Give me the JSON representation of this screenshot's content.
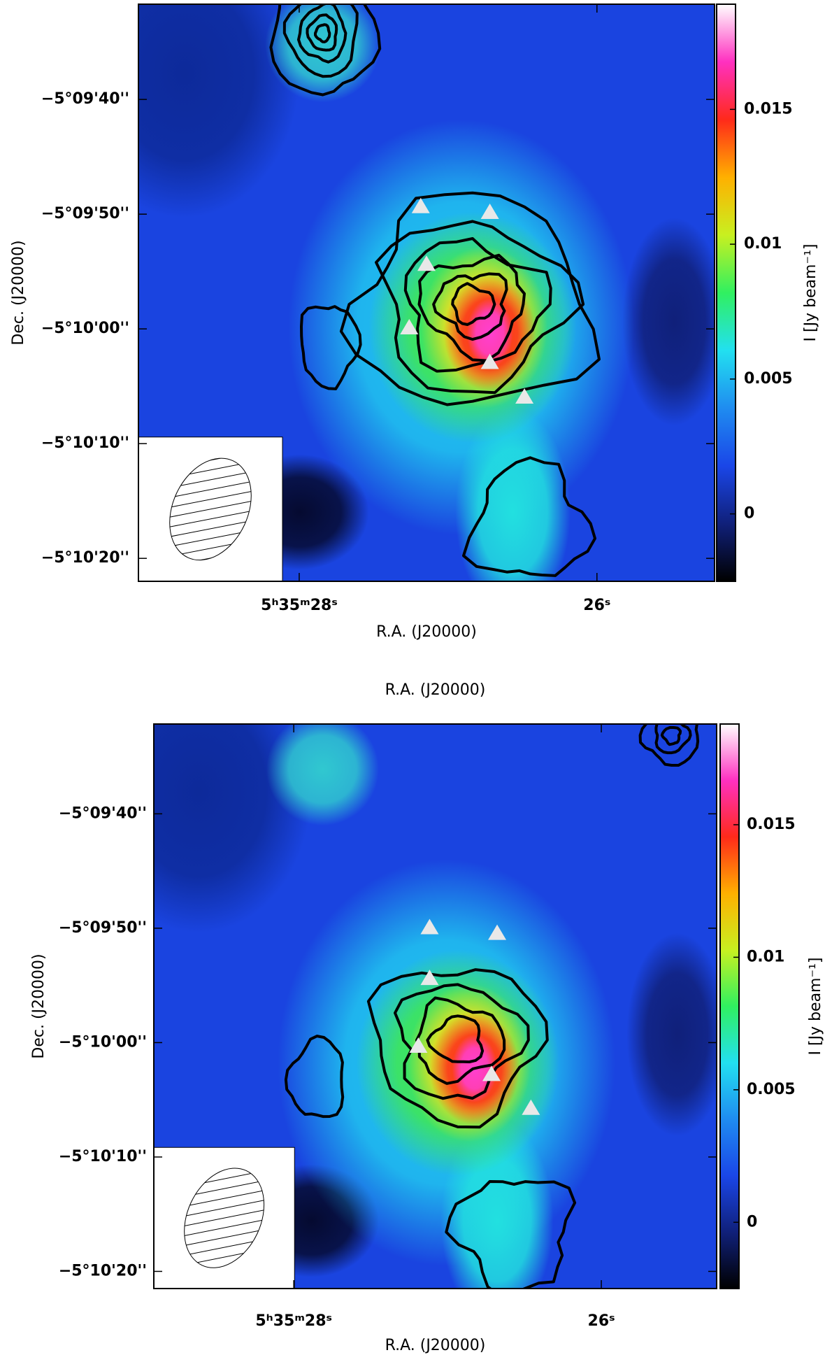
{
  "chart_data": [
    {
      "type": "image",
      "xlabel": "R.A. (J20000)",
      "ylabel": "Dec. (J20000)",
      "xlim": [
        29.08,
        25.21
      ],
      "ylim": [
        -18622,
        -18571.7
      ],
      "xticks": [
        {
          "value": 28,
          "label": "5ʰ35ᵐ28ˢ"
        },
        {
          "value": 26,
          "label": "26ˢ"
        }
      ],
      "yticks": [
        {
          "value": -18580,
          "label": "−5°09'40''"
        },
        {
          "value": -18590,
          "label": "−5°09'50''"
        },
        {
          "value": -18600,
          "label": "−5°10'00''"
        },
        {
          "value": -18610,
          "label": "−5°10'10''"
        },
        {
          "value": -18620,
          "label": "−5°10'20''"
        }
      ],
      "colorbar": {
        "label": "I [Jy beam⁻¹]",
        "lim": [
          -0.0025,
          0.0189
        ],
        "ticks": [
          0,
          0.005,
          0.01,
          0.015
        ],
        "colormap": [
          "#000000",
          "#10207a",
          "#1a46e8",
          "#1f8cf0",
          "#22e0f0",
          "#30f060",
          "#c8f020",
          "#ffb000",
          "#ff2a1a",
          "#ff30c0",
          "#ffffff"
        ]
      }
    },
    {
      "type": "image",
      "top_label": "R.A. (J20000)",
      "xlabel": "R.A. (J20000)",
      "ylabel": "Dec. (J20000)",
      "xlim": [
        28.91,
        25.25
      ],
      "ylim": [
        -18621.5,
        -18572.15
      ],
      "xticks": [
        {
          "value": 28,
          "label": "5ʰ35ᵐ28ˢ"
        },
        {
          "value": 26,
          "label": "26ˢ"
        }
      ],
      "yticks": [
        {
          "value": -18580,
          "label": "−5°09'40''"
        },
        {
          "value": -18590,
          "label": "−5°09'50''"
        },
        {
          "value": -18600,
          "label": "−5°10'00''"
        },
        {
          "value": -18610,
          "label": "−5°10'10''"
        },
        {
          "value": -18620,
          "label": "−5°10'20''"
        }
      ],
      "colorbar": {
        "label": "I [Jy beam⁻¹]",
        "lim": [
          -0.0025,
          0.0188
        ],
        "ticks": [
          0,
          0.005,
          0.01,
          0.015
        ],
        "colormap": [
          "#000000",
          "#10207a",
          "#1a46e8",
          "#1f8cf0",
          "#22e0f0",
          "#30f060",
          "#c8f020",
          "#ffb000",
          "#ff2a1a",
          "#ff30c0",
          "#ffffff"
        ]
      }
    }
  ]
}
